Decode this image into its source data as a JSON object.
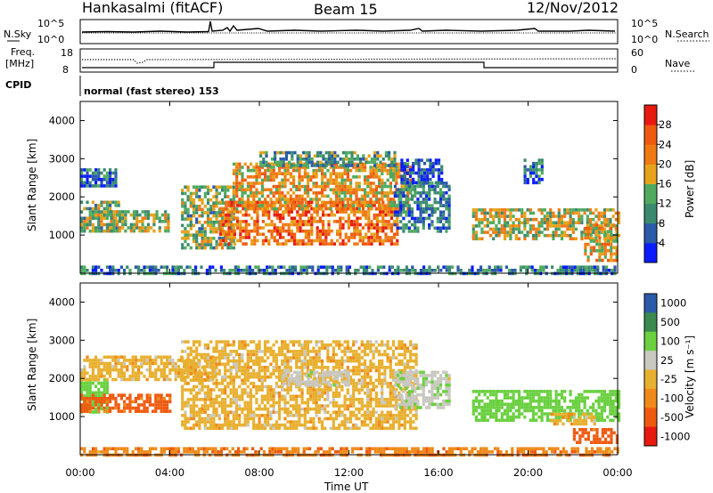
{
  "header": {
    "station": "Hankasalmi (fitACF)",
    "beam": "Beam 15",
    "date": "12/Nov/2012"
  },
  "top_panels": {
    "nsky_label": "N.Sky",
    "nsearch_label": "N.Search",
    "noise_ticks": [
      "10^5",
      "10^0"
    ],
    "freq_label": "Freq.",
    "freq_unit": "[MHz]",
    "freq_ticks": [
      "18",
      "8"
    ],
    "nave_label": "Nave",
    "nave_ticks": [
      "60",
      "0"
    ],
    "cpid_label": "CPID",
    "cpid_text": "normal (fast stereo) 153"
  },
  "colors": {
    "power": [
      "#0a1cff",
      "#2a5aa8",
      "#3a8a70",
      "#4faa60",
      "#e6a21a",
      "#ef7a14",
      "#ef5a10",
      "#e81a10"
    ],
    "velocity": [
      "#e81a10",
      "#ef5a10",
      "#ef8a1a",
      "#e8b030",
      "#c8c8c0",
      "#6ad040",
      "#3a8a50",
      "#2a5aa8"
    ]
  },
  "chart_data": [
    {
      "type": "heatmap",
      "title": "Power",
      "ylabel": "Slant Range [km]",
      "ylim": [
        0,
        4500
      ],
      "yticks": [
        1000,
        2000,
        3000,
        4000
      ],
      "xlim": [
        "00:00",
        "24:00"
      ],
      "colorbar": {
        "label": "Power [dB]",
        "ticks": [
          4,
          8,
          12,
          16,
          20,
          24,
          28
        ],
        "range": [
          0,
          32
        ]
      },
      "regions": [
        {
          "t0": 0.0,
          "t1": 1.7,
          "r0": 1100,
          "r1": 1900,
          "value": 14
        },
        {
          "t0": 0.0,
          "t1": 1.6,
          "r0": 2300,
          "r1": 2750,
          "value": 7
        },
        {
          "t0": 1.2,
          "t1": 4.0,
          "r0": 1100,
          "r1": 1650,
          "value": 15
        },
        {
          "t0": 4.5,
          "t1": 6.8,
          "r0": 700,
          "r1": 2300,
          "value": 14
        },
        {
          "t0": 6.2,
          "t1": 14.2,
          "r0": 800,
          "r1": 1900,
          "value": 24
        },
        {
          "t0": 6.8,
          "t1": 14.8,
          "r0": 1700,
          "r1": 2900,
          "value": 20
        },
        {
          "t0": 8.0,
          "t1": 14.0,
          "r0": 2800,
          "r1": 3200,
          "value": 11
        },
        {
          "t0": 14.0,
          "t1": 16.5,
          "r0": 1100,
          "r1": 2400,
          "value": 9
        },
        {
          "t0": 14.3,
          "t1": 16.2,
          "r0": 2400,
          "r1": 3000,
          "value": 6
        },
        {
          "t0": 17.5,
          "t1": 24.0,
          "r0": 900,
          "r1": 1700,
          "value": 17
        },
        {
          "t0": 19.8,
          "t1": 20.6,
          "r0": 2400,
          "r1": 3000,
          "value": 7
        },
        {
          "t0": 22.5,
          "t1": 24.0,
          "r0": 300,
          "r1": 1300,
          "value": 19
        },
        {
          "t0": 0.0,
          "t1": 24.0,
          "r0": 0,
          "r1": 200,
          "value": 8
        }
      ]
    },
    {
      "type": "heatmap",
      "title": "Velocity",
      "ylabel": "Slant Range [km]",
      "xlabel": "Time UT",
      "ylim": [
        0,
        4500
      ],
      "yticks": [
        1000,
        2000,
        3000,
        4000
      ],
      "xlim": [
        "00:00",
        "24:00"
      ],
      "xticks": [
        "00:00",
        "04:00",
        "08:00",
        "12:00",
        "16:00",
        "20:00",
        "00:00"
      ],
      "colorbar": {
        "label": "Velocity [m s⁻¹]",
        "ticks": [
          "1000",
          "500",
          "100",
          "25",
          "-25",
          "-100",
          "-500",
          "-1000"
        ]
      },
      "regions": [
        {
          "t0": 0.0,
          "t1": 1.2,
          "r0": 1100,
          "r1": 2000,
          "value": 300
        },
        {
          "t0": 0.0,
          "t1": 4.0,
          "r0": 1100,
          "r1": 1600,
          "value": -150
        },
        {
          "t0": 0.0,
          "t1": 6.0,
          "r0": 2000,
          "r1": 2600,
          "value": 0
        },
        {
          "t0": 4.5,
          "t1": 15.0,
          "r0": 700,
          "r1": 3000,
          "value": 0
        },
        {
          "t0": 9.0,
          "t1": 12.0,
          "r0": 1800,
          "r1": 2200,
          "value": 60
        },
        {
          "t0": 14.0,
          "t1": 16.5,
          "r0": 1200,
          "r1": 2200,
          "value": 80
        },
        {
          "t0": 17.5,
          "t1": 24.0,
          "r0": 900,
          "r1": 1700,
          "value": 250
        },
        {
          "t0": 21.0,
          "t1": 23.0,
          "r0": 800,
          "r1": 1100,
          "value": 0
        },
        {
          "t0": 22.0,
          "t1": 24.0,
          "r0": 300,
          "r1": 700,
          "value": -200
        },
        {
          "t0": 0.0,
          "t1": 24.0,
          "r0": 0,
          "r1": 200,
          "value": -80
        }
      ]
    }
  ]
}
